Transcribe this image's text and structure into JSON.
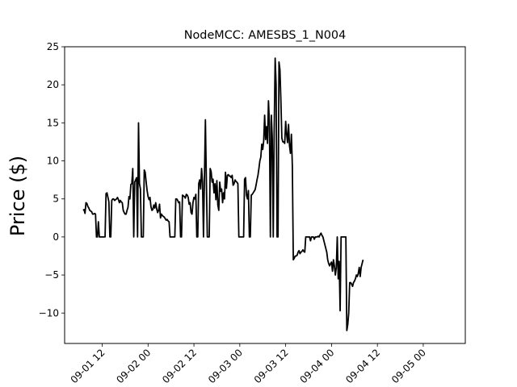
{
  "chart_data": {
    "type": "line",
    "title": "NodeMCC: AMESBS_1_N004",
    "xlabel": "",
    "ylabel": "Price ($)",
    "ylim": [
      -14.0,
      25.0
    ],
    "xlim": [
      "2020-09-01 02:10",
      "2020-09-05 11:00"
    ],
    "grid": false,
    "line_color": "#000000",
    "y_ticks": [
      25,
      20,
      15,
      10,
      5,
      0,
      -5,
      -10
    ],
    "y_tick_labels": [
      "25",
      "20",
      "15",
      "10",
      "5",
      "0",
      "−5",
      "−10"
    ],
    "x_ticks": [
      "2020-09-01 12:00",
      "2020-09-02 00:00",
      "2020-09-02 12:00",
      "2020-09-03 00:00",
      "2020-09-03 12:00",
      "2020-09-04 00:00",
      "2020-09-04 12:00",
      "2020-09-05 00:00"
    ],
    "x_tick_labels": [
      "09-01 12",
      "09-02 00",
      "09-02 12",
      "09-03 00",
      "09-03 12",
      "09-04 00",
      "09-04 12",
      "09-05 00"
    ],
    "series": [
      {
        "x_start": "2020-09-01 07:00",
        "step_minutes": 15,
        "values": [
          3.5,
          3.6,
          3.1,
          4.5,
          4.4,
          4.0,
          3.8,
          3.5,
          3.4,
          3.3,
          3.0,
          3.0,
          3.1,
          3.0,
          0,
          0,
          2.0,
          0,
          0,
          0,
          0,
          0,
          0,
          0,
          5.7,
          5.8,
          5.2,
          4.6,
          0,
          0,
          4.8,
          5.0,
          5.0,
          4.8,
          4.9,
          5.0,
          5.2,
          4.9,
          4.5,
          4.8,
          4.6,
          4.5,
          3.5,
          3.2,
          3.0,
          3.0,
          3.5,
          3.9,
          5.3,
          5.0,
          6.9,
          7.0,
          9.0,
          0,
          7.2,
          7.5,
          7.8,
          0,
          15.0,
          7.0,
          6.3,
          0,
          0,
          0,
          8.8,
          8.5,
          7.2,
          6.1,
          5.3,
          4.9,
          5.2,
          4.0,
          3.5,
          3.6,
          4.2,
          3.8,
          4.5,
          3.7,
          3.2,
          3.5,
          4.3,
          2.5,
          3.0,
          2.8,
          2.7,
          2.6,
          2.4,
          2.2,
          2.3,
          2.1,
          2.0,
          0,
          0,
          0,
          0,
          0,
          0,
          5.0,
          5.0,
          4.8,
          4.5,
          4.6,
          0,
          0,
          5.5,
          5.4,
          5.3,
          5.1,
          5.6,
          5.5,
          5.2,
          4.3,
          4.5,
          3.2,
          3.0,
          4.5,
          5.2,
          5.0,
          5.6,
          0,
          0,
          7.0,
          7.5,
          6.3,
          9.0,
          7.2,
          0,
          7.8,
          15.4,
          7.5,
          0,
          0,
          0,
          9.0,
          8.6,
          7.2,
          7.6,
          5.8,
          7.0,
          4.9,
          7.4,
          4.2,
          3.5,
          7.2,
          6.0,
          6.3,
          4.5,
          5.8,
          5.0,
          8.5,
          6.4,
          8.1,
          8.2,
          8.0,
          8.0,
          7.8,
          8.1,
          6.8,
          7.0,
          7.5,
          7.3,
          7.2,
          7.0,
          0,
          0,
          0,
          0,
          0,
          0,
          7.6,
          7.8,
          5.5,
          5.0,
          6.1,
          0,
          0,
          5.5,
          5.6,
          5.8,
          6.0,
          6.2,
          6.8,
          7.5,
          8.1,
          9.0,
          10.0,
          10.5,
          12.2,
          11.5,
          12.6,
          16.0,
          12.8,
          14.5,
          12.3,
          17.9,
          15.0,
          0,
          16.0,
          13.0,
          0,
          14.0,
          23.5,
          20.0,
          0,
          0,
          23.0,
          22.0,
          18.0,
          13.0,
          12.5,
          12.5,
          12.3,
          15.2,
          13.5,
          12.4,
          14.8,
          12.0,
          11.0,
          13.5,
          9.3,
          -3.0,
          -2.8,
          -2.5,
          -2.5,
          -2.4,
          -2.0,
          -1.8,
          -2.2,
          -2.0,
          -1.9,
          -1.7,
          -1.9,
          -2.0,
          0,
          0,
          0,
          0,
          0,
          -0.5,
          0,
          0,
          0,
          -0.3,
          0,
          0,
          0,
          0.1,
          0,
          0.3,
          0.5,
          0.2,
          0,
          -0.5,
          -1.0,
          -1.5,
          -2.0,
          -3.0,
          -3.5,
          -3.8,
          -3.5,
          -3.3,
          -4.5,
          -3.0,
          -3.8,
          -5.0,
          -4.0,
          0,
          -5.5,
          -3.2,
          -9.7,
          0,
          0,
          0,
          0,
          0,
          0,
          -12.3,
          -11.5,
          -10.0,
          -6.0,
          -6.0,
          -6.2,
          -6.5,
          -6.0,
          -5.8,
          -5.5,
          -5.0,
          -5.2,
          -4.8,
          -4.0,
          -5.2,
          -4.0,
          -3.5,
          -3.0
        ]
      }
    ]
  }
}
